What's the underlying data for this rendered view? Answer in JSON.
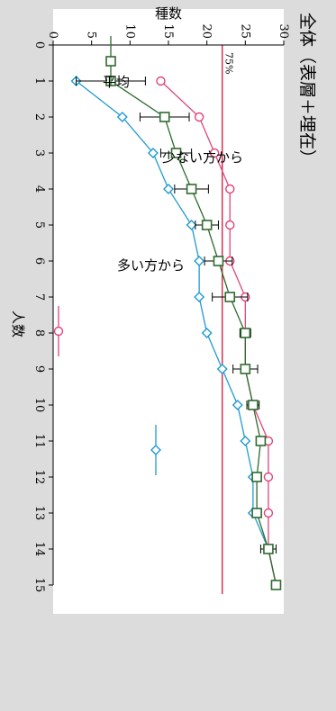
{
  "chart_data": {
    "type": "line",
    "title": "全体（表層＋埋在）",
    "xlabel": "人数",
    "ylabel": "種数",
    "x": [
      1,
      2,
      3,
      4,
      5,
      6,
      7,
      8,
      9,
      10,
      11,
      12,
      13,
      14,
      15
    ],
    "xlim": [
      0,
      15
    ],
    "ylim": [
      0,
      30
    ],
    "x_ticks": [
      "0",
      "1",
      "2",
      "3",
      "4",
      "5",
      "6",
      "7",
      "8",
      "9",
      "10",
      "11",
      "12",
      "13",
      "14",
      "15"
    ],
    "y_ticks": [
      "0",
      "5",
      "10",
      "15",
      "20",
      "25",
      "30"
    ],
    "reference_line": {
      "value": 22,
      "label": "75%",
      "color": "#d8143a"
    },
    "series": [
      {
        "name": "平均",
        "marker": "square",
        "color": "#2e6b2e",
        "values": [
          7.5,
          14.5,
          16,
          18,
          20,
          21.5,
          23,
          25,
          25,
          26,
          27,
          26.5,
          26.5,
          28,
          29
        ],
        "error": [
          4.5,
          3.2,
          2,
          2.2,
          1.5,
          1.8,
          2.3,
          0.7,
          1.6,
          0.8,
          0,
          0,
          0,
          1,
          0
        ]
      },
      {
        "name": "多い方から",
        "marker": "circle",
        "color": "#e0457b",
        "values": [
          14,
          19,
          21,
          23,
          23,
          23,
          25,
          25,
          25,
          26,
          28,
          28,
          28,
          28,
          29
        ]
      },
      {
        "name": "少ない方から",
        "marker": "diamond",
        "color": "#1f9bd1",
        "values": [
          3,
          9,
          13,
          15,
          18,
          19,
          19,
          20,
          22,
          24,
          25,
          26,
          26,
          28,
          29
        ]
      }
    ],
    "grid": false,
    "legend": "right"
  }
}
